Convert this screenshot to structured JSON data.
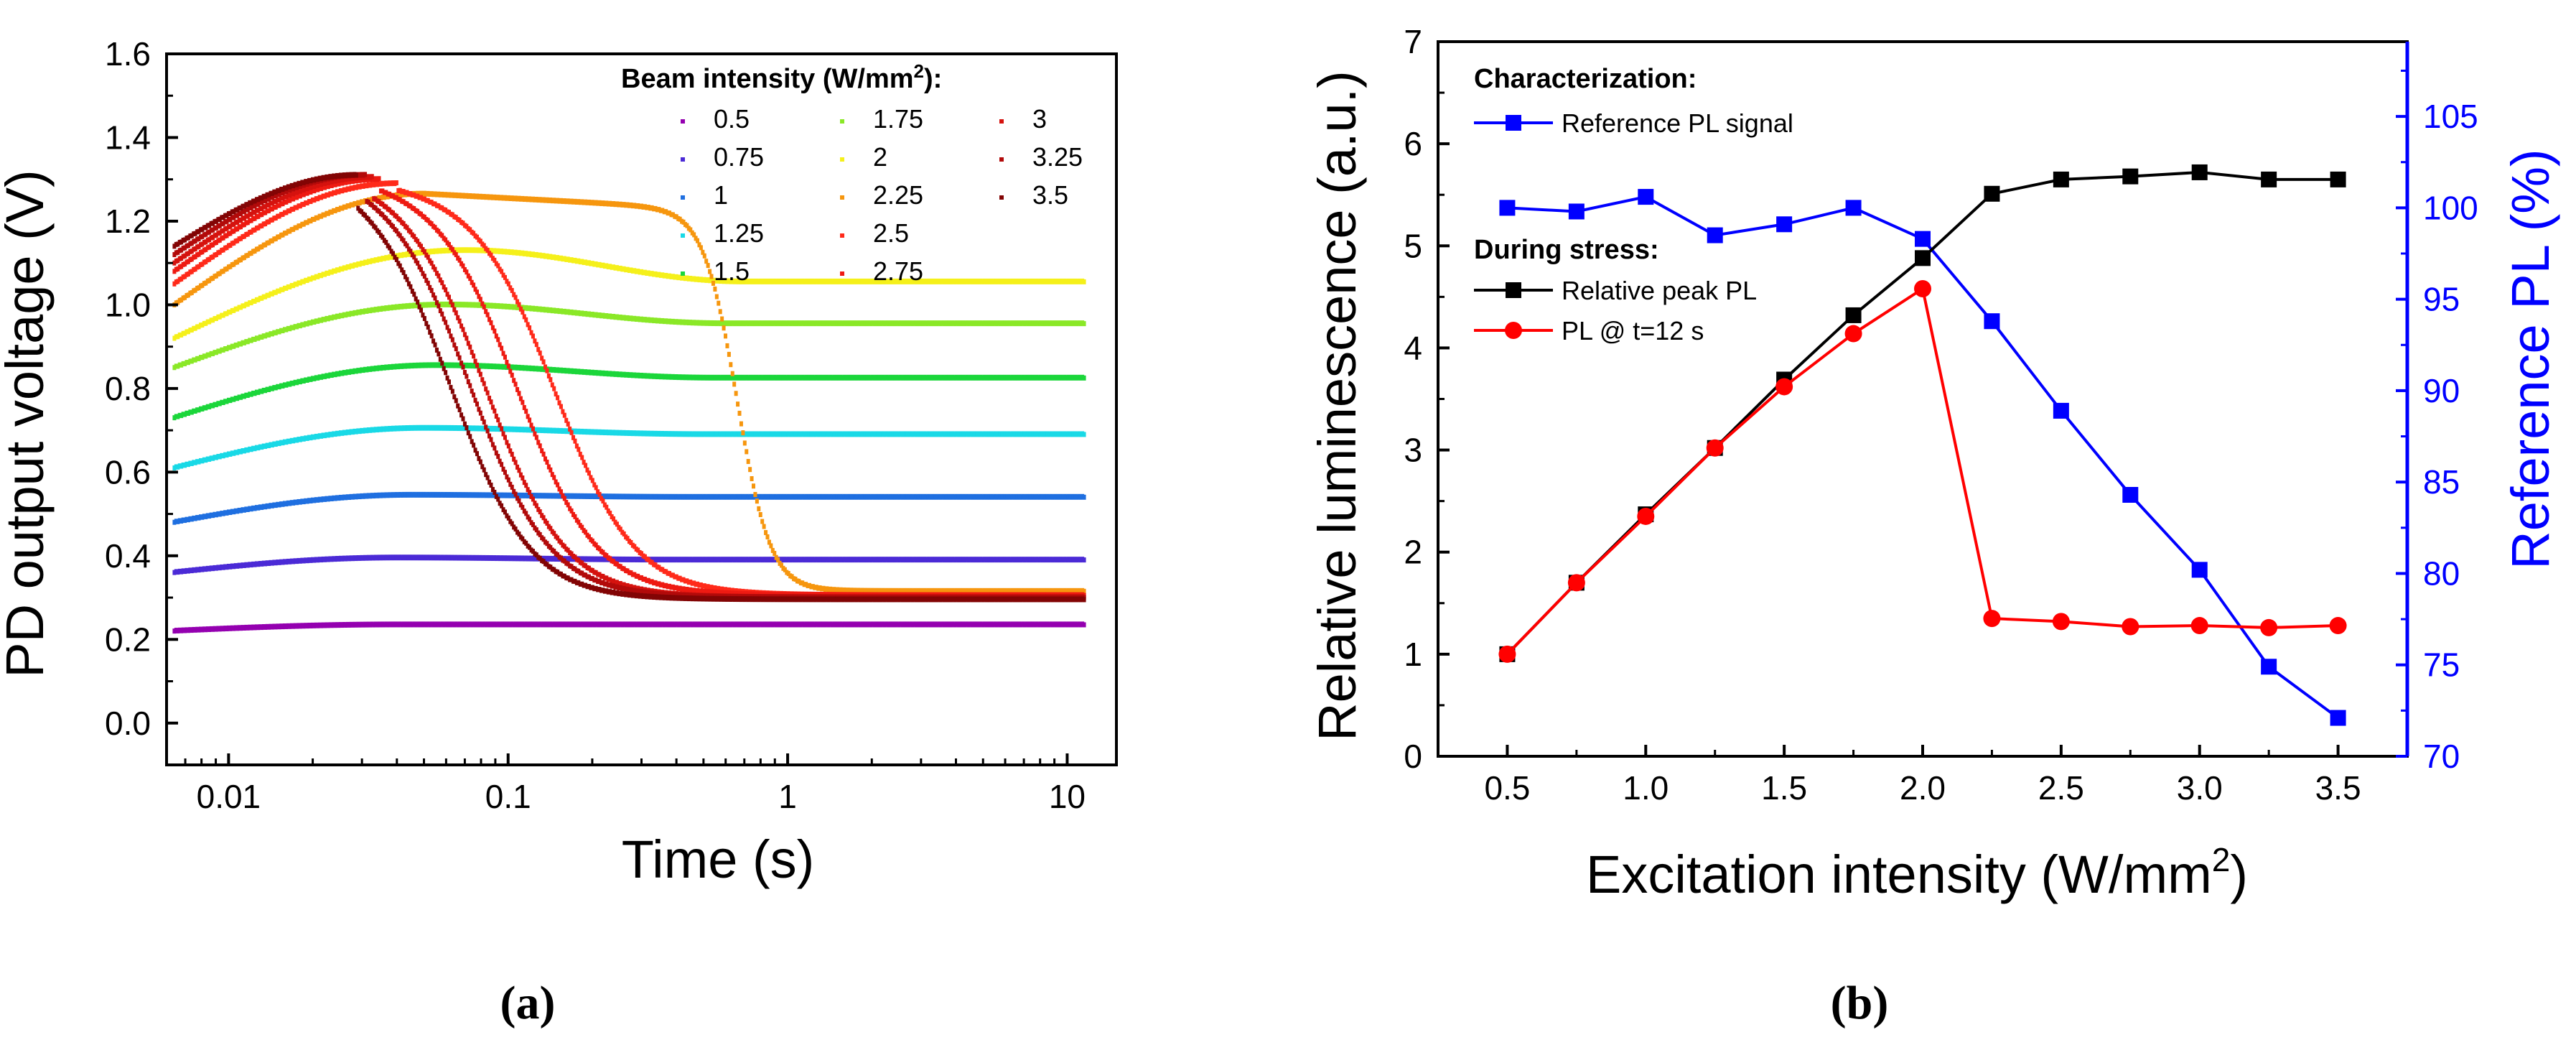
{
  "chart_data": [
    {
      "type": "scatter",
      "panel": "(a)",
      "panel_letter": "a",
      "xlabel": "Time (s)",
      "ylabel": "PD output voltage (V)",
      "xscale": "log",
      "xlim": [
        0.006,
        15
      ],
      "ylim": [
        -0.1,
        1.6
      ],
      "xticks": [
        0.01,
        0.1,
        1,
        10
      ],
      "xtick_labels": [
        "0.01",
        "0.1",
        "1",
        "10"
      ],
      "yticks": [
        0.0,
        0.2,
        0.4,
        0.6,
        0.8,
        1.0,
        1.2,
        1.4,
        1.6
      ],
      "ytick_labels": [
        "0.0",
        "0.2",
        "0.4",
        "0.6",
        "0.8",
        "1.0",
        "1.2",
        "1.4",
        "1.6"
      ],
      "legend_title": "Beam intensity (W/mm",
      "legend_title_sup": "2",
      "legend_title_end": "):",
      "legend_position": "top-right",
      "series": [
        {
          "name": "0.5",
          "color": "#9400b0",
          "start": 0.22,
          "peak": 0.235,
          "t_peak": 0.04,
          "final": 0.235,
          "t_drop": null
        },
        {
          "name": "0.75",
          "color": "#4b2ad6",
          "start": 0.36,
          "peak": 0.395,
          "t_peak": 0.04,
          "final": 0.39,
          "t_drop": null
        },
        {
          "name": "1",
          "color": "#1f6fe0",
          "start": 0.48,
          "peak": 0.545,
          "t_peak": 0.045,
          "final": 0.54,
          "t_drop": null
        },
        {
          "name": "1.25",
          "color": "#19d9e6",
          "start": 0.61,
          "peak": 0.705,
          "t_peak": 0.05,
          "final": 0.69,
          "t_drop": null
        },
        {
          "name": "1.5",
          "color": "#1bd63a",
          "start": 0.73,
          "peak": 0.855,
          "t_peak": 0.055,
          "final": 0.825,
          "t_drop": null
        },
        {
          "name": "1.75",
          "color": "#8ae827",
          "start": 0.85,
          "peak": 1.0,
          "t_peak": 0.06,
          "final": 0.955,
          "t_drop": null
        },
        {
          "name": "2",
          "color": "#f5f01a",
          "start": 0.92,
          "peak": 1.13,
          "t_peak": 0.07,
          "final": 1.055,
          "t_drop": null
        },
        {
          "name": "2.25",
          "color": "#f6960e",
          "start": 1.0,
          "peak": 1.265,
          "t_peak": 0.05,
          "final": 0.315,
          "t_drop": 0.66
        },
        {
          "name": "2.5",
          "color": "#ff2a1a",
          "start": 1.05,
          "peak": 1.29,
          "t_peak": 0.04,
          "final": 0.305,
          "t_drop": 0.15
        },
        {
          "name": "2.75",
          "color": "#ee1a12",
          "start": 1.08,
          "peak": 1.3,
          "t_peak": 0.035,
          "final": 0.305,
          "t_drop": 0.11
        },
        {
          "name": "3",
          "color": "#d5120e",
          "start": 1.1,
          "peak": 1.305,
          "t_peak": 0.033,
          "final": 0.3,
          "t_drop": 0.085
        },
        {
          "name": "3.25",
          "color": "#b20a0a",
          "start": 1.12,
          "peak": 1.31,
          "t_peak": 0.031,
          "final": 0.3,
          "t_drop": 0.075
        },
        {
          "name": "3.5",
          "color": "#820404",
          "start": 1.14,
          "peak": 1.31,
          "t_peak": 0.029,
          "final": 0.295,
          "t_drop": 0.064
        }
      ]
    },
    {
      "type": "line",
      "panel": "(b)",
      "panel_letter": "b",
      "xlabel": "Excitation intensity (W/mm",
      "xlabel_sup": "2",
      "xlabel_end": ")",
      "ylabel": "Relative luminescence (a.u.)",
      "ylabel_right": "Reference PL (%)",
      "xlim": [
        0.25,
        3.75
      ],
      "ylim": [
        0,
        7
      ],
      "ylim_right": [
        70,
        109.09
      ],
      "xticks": [
        0.5,
        1.0,
        1.5,
        2.0,
        2.5,
        3.0,
        3.5
      ],
      "xtick_labels": [
        "0.5",
        "1.0",
        "1.5",
        "2.0",
        "2.5",
        "3.0",
        "3.5"
      ],
      "yticks": [
        0,
        1,
        2,
        3,
        4,
        5,
        6,
        7
      ],
      "ytick_labels": [
        "0",
        "1",
        "2",
        "3",
        "4",
        "5",
        "6",
        "7"
      ],
      "yticks_right": [
        70,
        75,
        80,
        85,
        90,
        95,
        100,
        105
      ],
      "ytick_labels_right": [
        "70",
        "75",
        "80",
        "85",
        "90",
        "95",
        "100",
        "105"
      ],
      "x": [
        0.5,
        0.75,
        1.0,
        1.25,
        1.5,
        1.75,
        2.0,
        2.25,
        2.5,
        2.75,
        3.0,
        3.25,
        3.5
      ],
      "legend_position": "top-left",
      "legend_sections": [
        {
          "heading": "Characterization:",
          "items": [
            "Reference PL signal"
          ]
        },
        {
          "heading": "During stress:",
          "items": [
            "Relative peak PL",
            "PL @ t=12 s"
          ]
        }
      ],
      "series": [
        {
          "name": "Reference PL signal",
          "axis": "right",
          "marker": "square",
          "color": "#0000ff",
          "values": [
            100.0,
            99.8,
            100.6,
            98.5,
            99.1,
            100.0,
            98.3,
            93.8,
            88.9,
            84.3,
            80.2,
            74.9,
            72.1
          ]
        },
        {
          "name": "Relative peak PL",
          "axis": "left",
          "marker": "square",
          "color": "#000000",
          "values": [
            1.0,
            1.7,
            2.37,
            3.02,
            3.69,
            4.32,
            4.88,
            5.51,
            5.65,
            5.68,
            5.72,
            5.65,
            5.65
          ]
        },
        {
          "name": "PL @ t=12 s",
          "axis": "left",
          "marker": "circle",
          "color": "#ff0000",
          "values": [
            1.0,
            1.7,
            2.35,
            3.02,
            3.62,
            4.14,
            4.58,
            1.35,
            1.32,
            1.27,
            1.28,
            1.26,
            1.28
          ]
        }
      ]
    }
  ]
}
